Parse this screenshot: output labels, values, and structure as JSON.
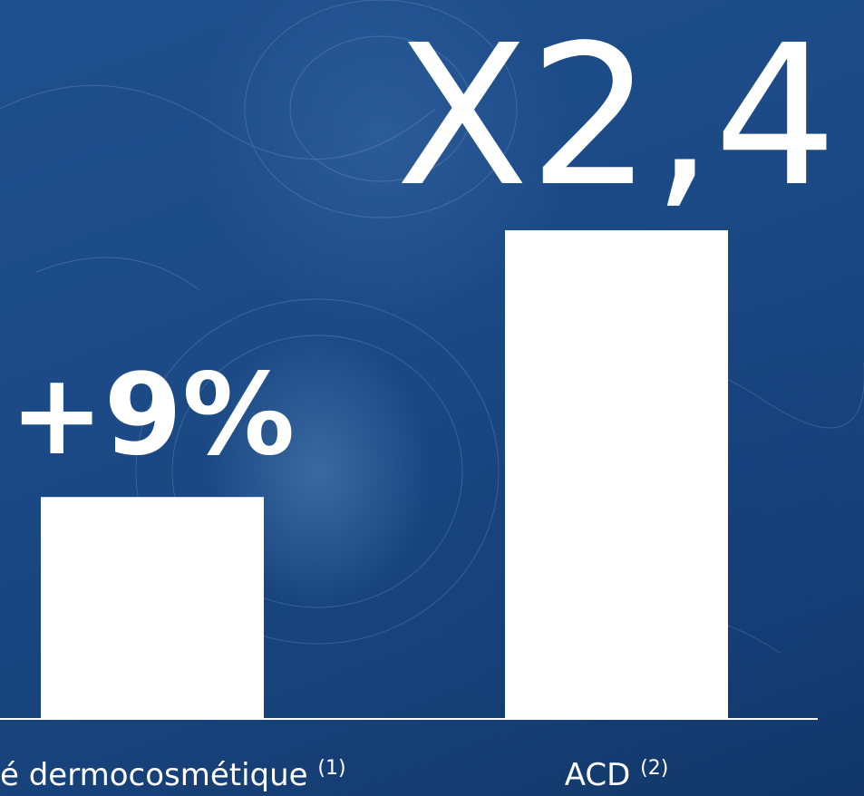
{
  "chart_data": {
    "type": "bar",
    "categories": [
      "é dermocosmétique",
      "ACD"
    ],
    "category_notes": [
      "(1)",
      "(2)"
    ],
    "values": [
      1.09,
      2.4
    ],
    "value_labels": [
      "+9%",
      "X2,4"
    ],
    "colors": {
      "bar": "#ffffff",
      "background": "#1b4a86"
    }
  }
}
